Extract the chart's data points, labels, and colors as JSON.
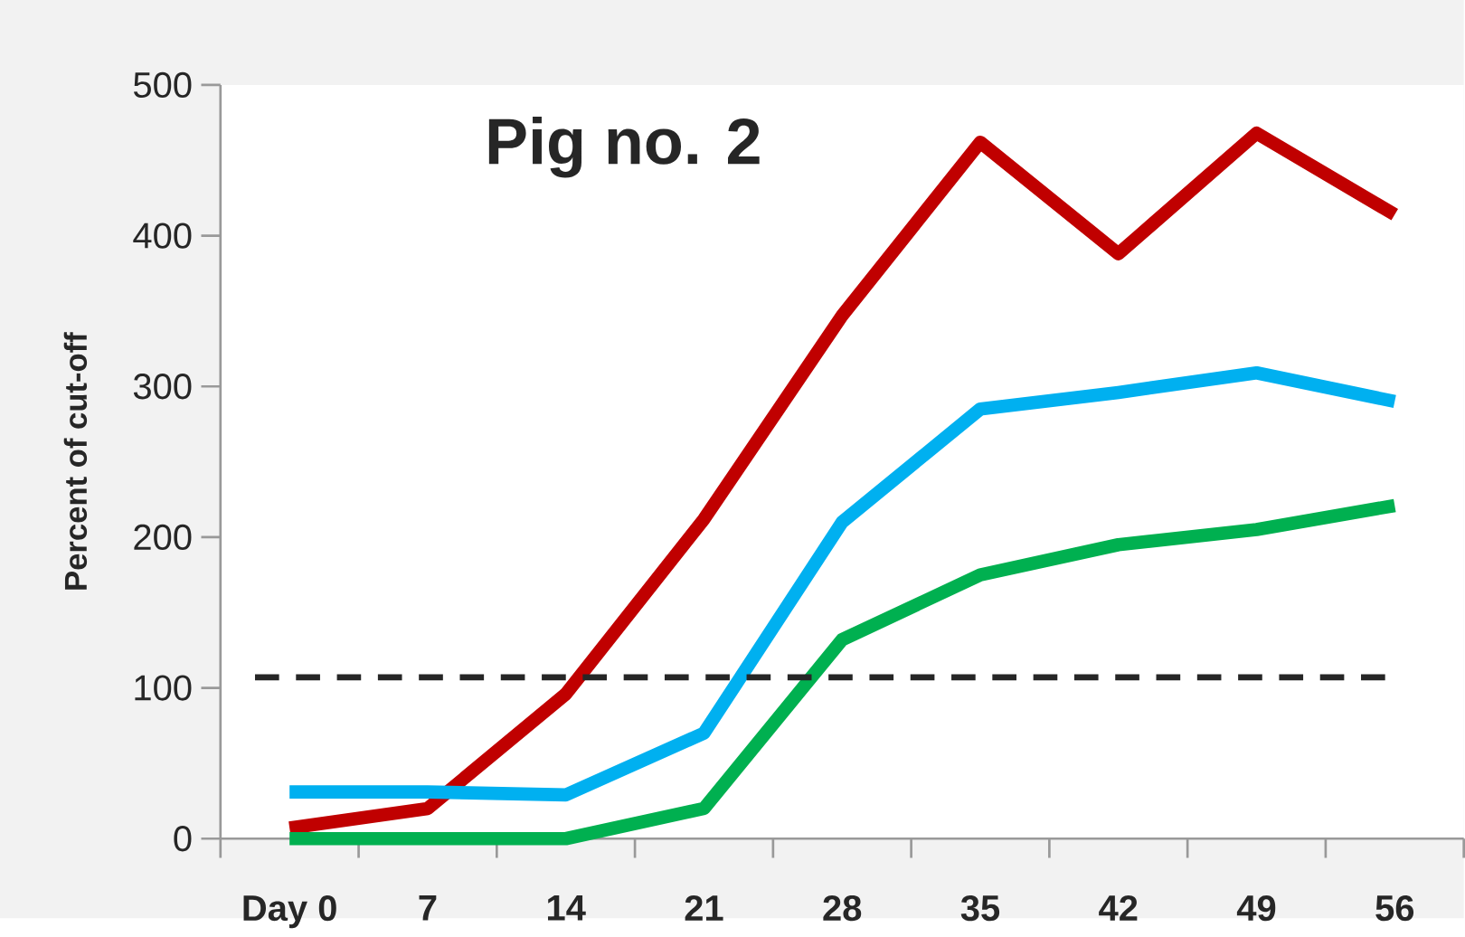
{
  "chart_data": {
    "type": "line",
    "title": "Pig no. 2",
    "ylabel": "Percent of cut-off",
    "categories": [
      "Day 0",
      "7",
      "14",
      "21",
      "28",
      "35",
      "42",
      "49",
      "56"
    ],
    "series": [
      {
        "color": "#c00000",
        "values": [
          7,
          20,
          96,
          212,
          347,
          462,
          388,
          468,
          414
        ]
      },
      {
        "color": "#00b0f0",
        "values": [
          31,
          31,
          29,
          70,
          210,
          285,
          296,
          309,
          290
        ]
      },
      {
        "color": "#00b050",
        "values": [
          0,
          0,
          0,
          20,
          132,
          175,
          195,
          205,
          221
        ]
      }
    ],
    "ylim": [
      0,
      500
    ],
    "yticks": [
      0,
      100,
      200,
      300,
      400,
      500
    ],
    "ref_lines": [
      {
        "axis": "y",
        "value": 107,
        "color": "#262626",
        "line_style": "dashed"
      }
    ],
    "marker": "none",
    "line_style": "solid"
  }
}
